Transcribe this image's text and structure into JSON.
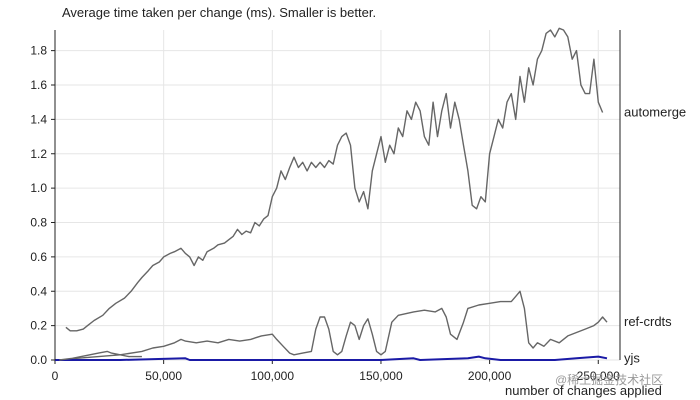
{
  "chart_data": {
    "type": "line",
    "title": "Average time taken per change (ms). Smaller is better.",
    "xlabel": "number of changes applied",
    "ylabel": "",
    "xlim": [
      0,
      260000
    ],
    "ylim": [
      0,
      1.92
    ],
    "x_ticks": [
      0,
      50000,
      100000,
      150000,
      200000,
      250000
    ],
    "x_tick_labels": [
      "0",
      "50,000",
      "100,000",
      "150,000",
      "200,000",
      "250,000"
    ],
    "y_ticks": [
      0,
      0.2,
      0.4,
      0.6,
      0.8,
      1.0,
      1.2,
      1.4,
      1.6,
      1.8
    ],
    "y_tick_labels": [
      "0.0",
      "0.2",
      "0.4",
      "0.6",
      "0.8",
      "1.0",
      "1.2",
      "1.4",
      "1.6",
      "1.8"
    ],
    "grid": true,
    "legend": "right, labels at line ends",
    "series": [
      {
        "name": "automerge",
        "color": "#666666",
        "points": [
          [
            5000,
            0.19
          ],
          [
            7000,
            0.17
          ],
          [
            10000,
            0.17
          ],
          [
            13000,
            0.18
          ],
          [
            15000,
            0.2
          ],
          [
            18000,
            0.23
          ],
          [
            22000,
            0.26
          ],
          [
            25000,
            0.3
          ],
          [
            28000,
            0.33
          ],
          [
            32000,
            0.36
          ],
          [
            35000,
            0.4
          ],
          [
            38000,
            0.45
          ],
          [
            40000,
            0.48
          ],
          [
            43000,
            0.52
          ],
          [
            45000,
            0.55
          ],
          [
            48000,
            0.57
          ],
          [
            50000,
            0.6
          ],
          [
            53000,
            0.62
          ],
          [
            55000,
            0.63
          ],
          [
            58000,
            0.65
          ],
          [
            60000,
            0.62
          ],
          [
            62000,
            0.6
          ],
          [
            64000,
            0.55
          ],
          [
            66000,
            0.6
          ],
          [
            68000,
            0.58
          ],
          [
            70000,
            0.63
          ],
          [
            73000,
            0.65
          ],
          [
            75000,
            0.67
          ],
          [
            78000,
            0.68
          ],
          [
            80000,
            0.7
          ],
          [
            82000,
            0.72
          ],
          [
            84000,
            0.76
          ],
          [
            86000,
            0.73
          ],
          [
            88000,
            0.75
          ],
          [
            90000,
            0.74
          ],
          [
            92000,
            0.8
          ],
          [
            94000,
            0.78
          ],
          [
            96000,
            0.82
          ],
          [
            98000,
            0.84
          ],
          [
            100000,
            0.95
          ],
          [
            102000,
            1.0
          ],
          [
            104000,
            1.1
          ],
          [
            106000,
            1.05
          ],
          [
            108000,
            1.12
          ],
          [
            110000,
            1.18
          ],
          [
            112000,
            1.12
          ],
          [
            114000,
            1.15
          ],
          [
            116000,
            1.1
          ],
          [
            118000,
            1.15
          ],
          [
            120000,
            1.12
          ],
          [
            122000,
            1.15
          ],
          [
            124000,
            1.12
          ],
          [
            126000,
            1.16
          ],
          [
            128000,
            1.14
          ],
          [
            130000,
            1.25
          ],
          [
            132000,
            1.3
          ],
          [
            134000,
            1.32
          ],
          [
            136000,
            1.25
          ],
          [
            138000,
            1.0
          ],
          [
            140000,
            0.92
          ],
          [
            142000,
            0.98
          ],
          [
            144000,
            0.88
          ],
          [
            146000,
            1.1
          ],
          [
            148000,
            1.2
          ],
          [
            150000,
            1.3
          ],
          [
            152000,
            1.15
          ],
          [
            154000,
            1.25
          ],
          [
            156000,
            1.2
          ],
          [
            158000,
            1.35
          ],
          [
            160000,
            1.3
          ],
          [
            162000,
            1.45
          ],
          [
            164000,
            1.4
          ],
          [
            166000,
            1.5
          ],
          [
            168000,
            1.45
          ],
          [
            170000,
            1.3
          ],
          [
            172000,
            1.25
          ],
          [
            174000,
            1.5
          ],
          [
            176000,
            1.3
          ],
          [
            178000,
            1.45
          ],
          [
            180000,
            1.55
          ],
          [
            182000,
            1.35
          ],
          [
            184000,
            1.5
          ],
          [
            186000,
            1.4
          ],
          [
            188000,
            1.25
          ],
          [
            190000,
            1.1
          ],
          [
            192000,
            0.9
          ],
          [
            194000,
            0.88
          ],
          [
            196000,
            0.95
          ],
          [
            198000,
            0.92
          ],
          [
            200000,
            1.2
          ],
          [
            202000,
            1.3
          ],
          [
            204000,
            1.4
          ],
          [
            206000,
            1.35
          ],
          [
            208000,
            1.5
          ],
          [
            210000,
            1.55
          ],
          [
            212000,
            1.4
          ],
          [
            214000,
            1.65
          ],
          [
            216000,
            1.5
          ],
          [
            218000,
            1.7
          ],
          [
            220000,
            1.6
          ],
          [
            222000,
            1.75
          ],
          [
            224000,
            1.8
          ],
          [
            226000,
            1.9
          ],
          [
            228000,
            1.92
          ],
          [
            230000,
            1.88
          ],
          [
            232000,
            1.93
          ],
          [
            234000,
            1.92
          ],
          [
            236000,
            1.88
          ],
          [
            238000,
            1.75
          ],
          [
            240000,
            1.8
          ],
          [
            242000,
            1.6
          ],
          [
            244000,
            1.55
          ],
          [
            246000,
            1.55
          ],
          [
            248000,
            1.75
          ],
          [
            250000,
            1.5
          ],
          [
            252000,
            1.44
          ]
        ]
      },
      {
        "name": "ref-crdts",
        "color": "#666666",
        "points": [
          [
            5000,
            0.0
          ],
          [
            10000,
            0.01
          ],
          [
            20000,
            0.02
          ],
          [
            30000,
            0.03
          ],
          [
            40000,
            0.05
          ],
          [
            45000,
            0.07
          ],
          [
            50000,
            0.08
          ],
          [
            55000,
            0.1
          ],
          [
            58000,
            0.12
          ],
          [
            60000,
            0.11
          ],
          [
            65000,
            0.1
          ],
          [
            70000,
            0.11
          ],
          [
            75000,
            0.1
          ],
          [
            80000,
            0.12
          ],
          [
            85000,
            0.11
          ],
          [
            90000,
            0.12
          ],
          [
            95000,
            0.14
          ],
          [
            100000,
            0.15
          ],
          [
            102000,
            0.12
          ],
          [
            105000,
            0.08
          ],
          [
            108000,
            0.04
          ],
          [
            110000,
            0.03
          ],
          [
            114000,
            0.04
          ],
          [
            118000,
            0.05
          ],
          [
            120000,
            0.18
          ],
          [
            122000,
            0.25
          ],
          [
            124000,
            0.25
          ],
          [
            126000,
            0.18
          ],
          [
            128000,
            0.05
          ],
          [
            130000,
            0.03
          ],
          [
            132000,
            0.05
          ],
          [
            134000,
            0.14
          ],
          [
            136000,
            0.22
          ],
          [
            138000,
            0.2
          ],
          [
            140000,
            0.12
          ],
          [
            142000,
            0.2
          ],
          [
            144000,
            0.24
          ],
          [
            146000,
            0.15
          ],
          [
            148000,
            0.05
          ],
          [
            150000,
            0.03
          ],
          [
            152000,
            0.05
          ],
          [
            155000,
            0.22
          ],
          [
            158000,
            0.26
          ],
          [
            165000,
            0.28
          ],
          [
            170000,
            0.29
          ],
          [
            175000,
            0.28
          ],
          [
            178000,
            0.3
          ],
          [
            180000,
            0.25
          ],
          [
            182000,
            0.15
          ],
          [
            185000,
            0.12
          ],
          [
            188000,
            0.22
          ],
          [
            190000,
            0.3
          ],
          [
            195000,
            0.32
          ],
          [
            200000,
            0.33
          ],
          [
            205000,
            0.34
          ],
          [
            210000,
            0.34
          ],
          [
            212000,
            0.37
          ],
          [
            214000,
            0.4
          ],
          [
            216000,
            0.3
          ],
          [
            218000,
            0.1
          ],
          [
            220000,
            0.07
          ],
          [
            222000,
            0.1
          ],
          [
            225000,
            0.08
          ],
          [
            228000,
            0.12
          ],
          [
            232000,
            0.1
          ],
          [
            236000,
            0.14
          ],
          [
            240000,
            0.16
          ],
          [
            244000,
            0.18
          ],
          [
            248000,
            0.2
          ],
          [
            250000,
            0.22
          ],
          [
            252000,
            0.25
          ],
          [
            254000,
            0.22
          ]
        ]
      },
      {
        "name": "yjs",
        "color": "#1a1aa6",
        "points": [
          [
            0,
            0.0
          ],
          [
            30000,
            0.0
          ],
          [
            60000,
            0.01
          ],
          [
            62000,
            0.0
          ],
          [
            100000,
            0.0
          ],
          [
            150000,
            0.0
          ],
          [
            165000,
            0.01
          ],
          [
            168000,
            0.0
          ],
          [
            190000,
            0.01
          ],
          [
            195000,
            0.02
          ],
          [
            198000,
            0.01
          ],
          [
            205000,
            0.0
          ],
          [
            230000,
            0.0
          ],
          [
            240000,
            0.01
          ],
          [
            250000,
            0.02
          ],
          [
            254000,
            0.01
          ]
        ]
      },
      {
        "name": "",
        "color": "#666666",
        "points": [
          [
            2000,
            0.0
          ],
          [
            8000,
            0.01
          ],
          [
            12000,
            0.02
          ],
          [
            16000,
            0.03
          ],
          [
            20000,
            0.04
          ],
          [
            24000,
            0.05
          ],
          [
            26000,
            0.04
          ],
          [
            30000,
            0.03
          ],
          [
            34000,
            0.02
          ],
          [
            40000,
            0.02
          ]
        ]
      }
    ]
  },
  "watermark": "@稀土掘金技术社区"
}
